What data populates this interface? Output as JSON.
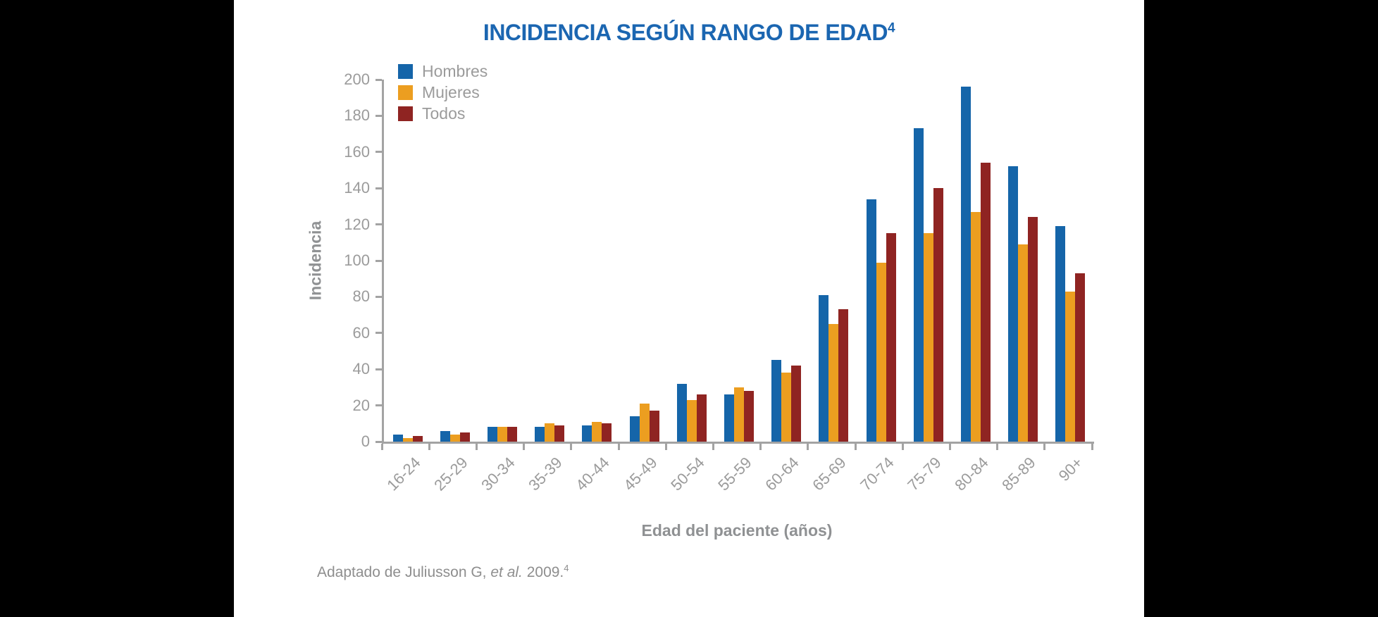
{
  "chart_data": {
    "type": "bar",
    "title": "INCIDENCIA SEGÚN RANGO DE EDAD",
    "title_superscript": "4",
    "title_color": "#1B66B1",
    "xlabel": "Edad del paciente (años)",
    "ylabel": "Incidencia",
    "ylim": [
      0,
      200
    ],
    "ytick_step": 20,
    "grid": false,
    "legend_position": "top-left",
    "categories": [
      "16-24",
      "25-29",
      "30-34",
      "35-39",
      "40-44",
      "45-49",
      "50-54",
      "55-59",
      "60-64",
      "65-69",
      "70-74",
      "75-79",
      "80-84",
      "85-89",
      "90+"
    ],
    "series": [
      {
        "name": "Hombres",
        "color": "#1565A9",
        "values": [
          4,
          6,
          8,
          8,
          9,
          14,
          32,
          26,
          45,
          81,
          134,
          173,
          196,
          152,
          119
        ]
      },
      {
        "name": "Mujeres",
        "color": "#EC9E20",
        "values": [
          2,
          4,
          8,
          10,
          11,
          21,
          23,
          30,
          38,
          65,
          99,
          115,
          127,
          109,
          83
        ]
      },
      {
        "name": "Todos",
        "color": "#8F2422",
        "values": [
          3,
          5,
          8,
          9,
          10,
          17,
          26,
          28,
          42,
          73,
          115,
          140,
          154,
          124,
          93
        ]
      }
    ],
    "source_note": {
      "prefix": "Adaptado de Juliusson G, ",
      "italic": "et al.",
      "suffix": " 2009.",
      "superscript": "4"
    }
  }
}
